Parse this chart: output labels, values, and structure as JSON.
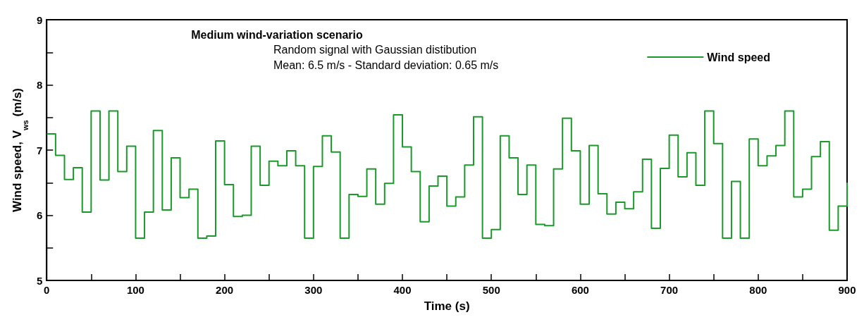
{
  "chart_data": {
    "type": "step",
    "title": "Medium wind-variation scenario",
    "annotations": [
      "Random signal with Gaussian distibution",
      "Mean: 6.5 m/s - Standard deviation: 0.65 m/s"
    ],
    "xlabel": "Time (s)",
    "ylabel": "Wind speed, V$_{ws}$ (m/s)",
    "x": [
      0,
      10,
      20,
      30,
      40,
      50,
      60,
      70,
      80,
      90,
      100,
      110,
      120,
      130,
      140,
      150,
      160,
      170,
      180,
      190,
      200,
      210,
      220,
      230,
      240,
      250,
      260,
      270,
      280,
      290,
      300,
      310,
      320,
      330,
      340,
      350,
      360,
      370,
      380,
      390,
      400,
      410,
      420,
      430,
      440,
      450,
      460,
      470,
      480,
      490,
      500,
      510,
      520,
      530,
      540,
      550,
      560,
      570,
      580,
      590,
      600,
      610,
      620,
      630,
      640,
      650,
      660,
      670,
      680,
      690,
      700,
      710,
      720,
      730,
      740,
      750,
      760,
      770,
      780,
      790,
      800,
      810,
      820,
      830,
      840,
      850,
      860,
      870,
      880,
      890,
      900
    ],
    "series": [
      {
        "name": "Wind speed",
        "color": "#1a9a2a",
        "values": [
          7.25,
          6.92,
          6.55,
          6.73,
          6.05,
          7.6,
          6.54,
          7.6,
          6.67,
          7.06,
          5.65,
          6.05,
          7.3,
          6.08,
          6.88,
          6.27,
          6.4,
          5.65,
          5.68,
          7.14,
          6.47,
          5.98,
          6.0,
          7.06,
          6.46,
          6.83,
          6.76,
          6.99,
          6.76,
          5.65,
          6.75,
          7.22,
          6.97,
          5.65,
          6.32,
          6.29,
          6.71,
          6.17,
          6.49,
          7.54,
          7.05,
          6.67,
          5.9,
          6.45,
          6.6,
          6.14,
          6.28,
          6.77,
          7.51,
          5.65,
          5.78,
          7.22,
          6.88,
          6.32,
          6.77,
          5.86,
          5.84,
          6.71,
          7.49,
          6.99,
          6.17,
          7.07,
          6.33,
          6.02,
          6.2,
          6.1,
          6.36,
          6.86,
          5.8,
          6.72,
          7.23,
          6.59,
          6.96,
          6.46,
          7.6,
          7.1,
          5.65,
          6.52,
          5.65,
          7.17,
          6.76,
          6.91,
          7.07,
          7.6,
          6.28,
          6.4,
          6.9,
          7.13,
          5.77,
          6.14,
          6.5
        ]
      }
    ],
    "xlim": [
      0,
      900
    ],
    "xticks": [
      0,
      {
        "value": 50,
        "label": null
      },
      100,
      {
        "value": 150,
        "label": null
      },
      200,
      {
        "value": 250,
        "label": null
      },
      300,
      {
        "value": 350,
        "label": null
      },
      400,
      {
        "value": 450,
        "label": null
      },
      500,
      {
        "value": 550,
        "label": null
      },
      600,
      {
        "value": 650,
        "label": null
      },
      700,
      {
        "value": 750,
        "label": null
      },
      800,
      {
        "value": 850,
        "label": null
      },
      900
    ],
    "ylim": [
      5,
      9
    ],
    "yticks": [
      5,
      {
        "value": 5.5,
        "label": null
      },
      6,
      {
        "value": 6.5,
        "label": null
      },
      7,
      {
        "value": 7.5,
        "label": null
      },
      8,
      {
        "value": 8.5,
        "label": null
      },
      9
    ],
    "grid": false,
    "legend": "top right",
    "marker": "none",
    "line_style": "solid"
  }
}
